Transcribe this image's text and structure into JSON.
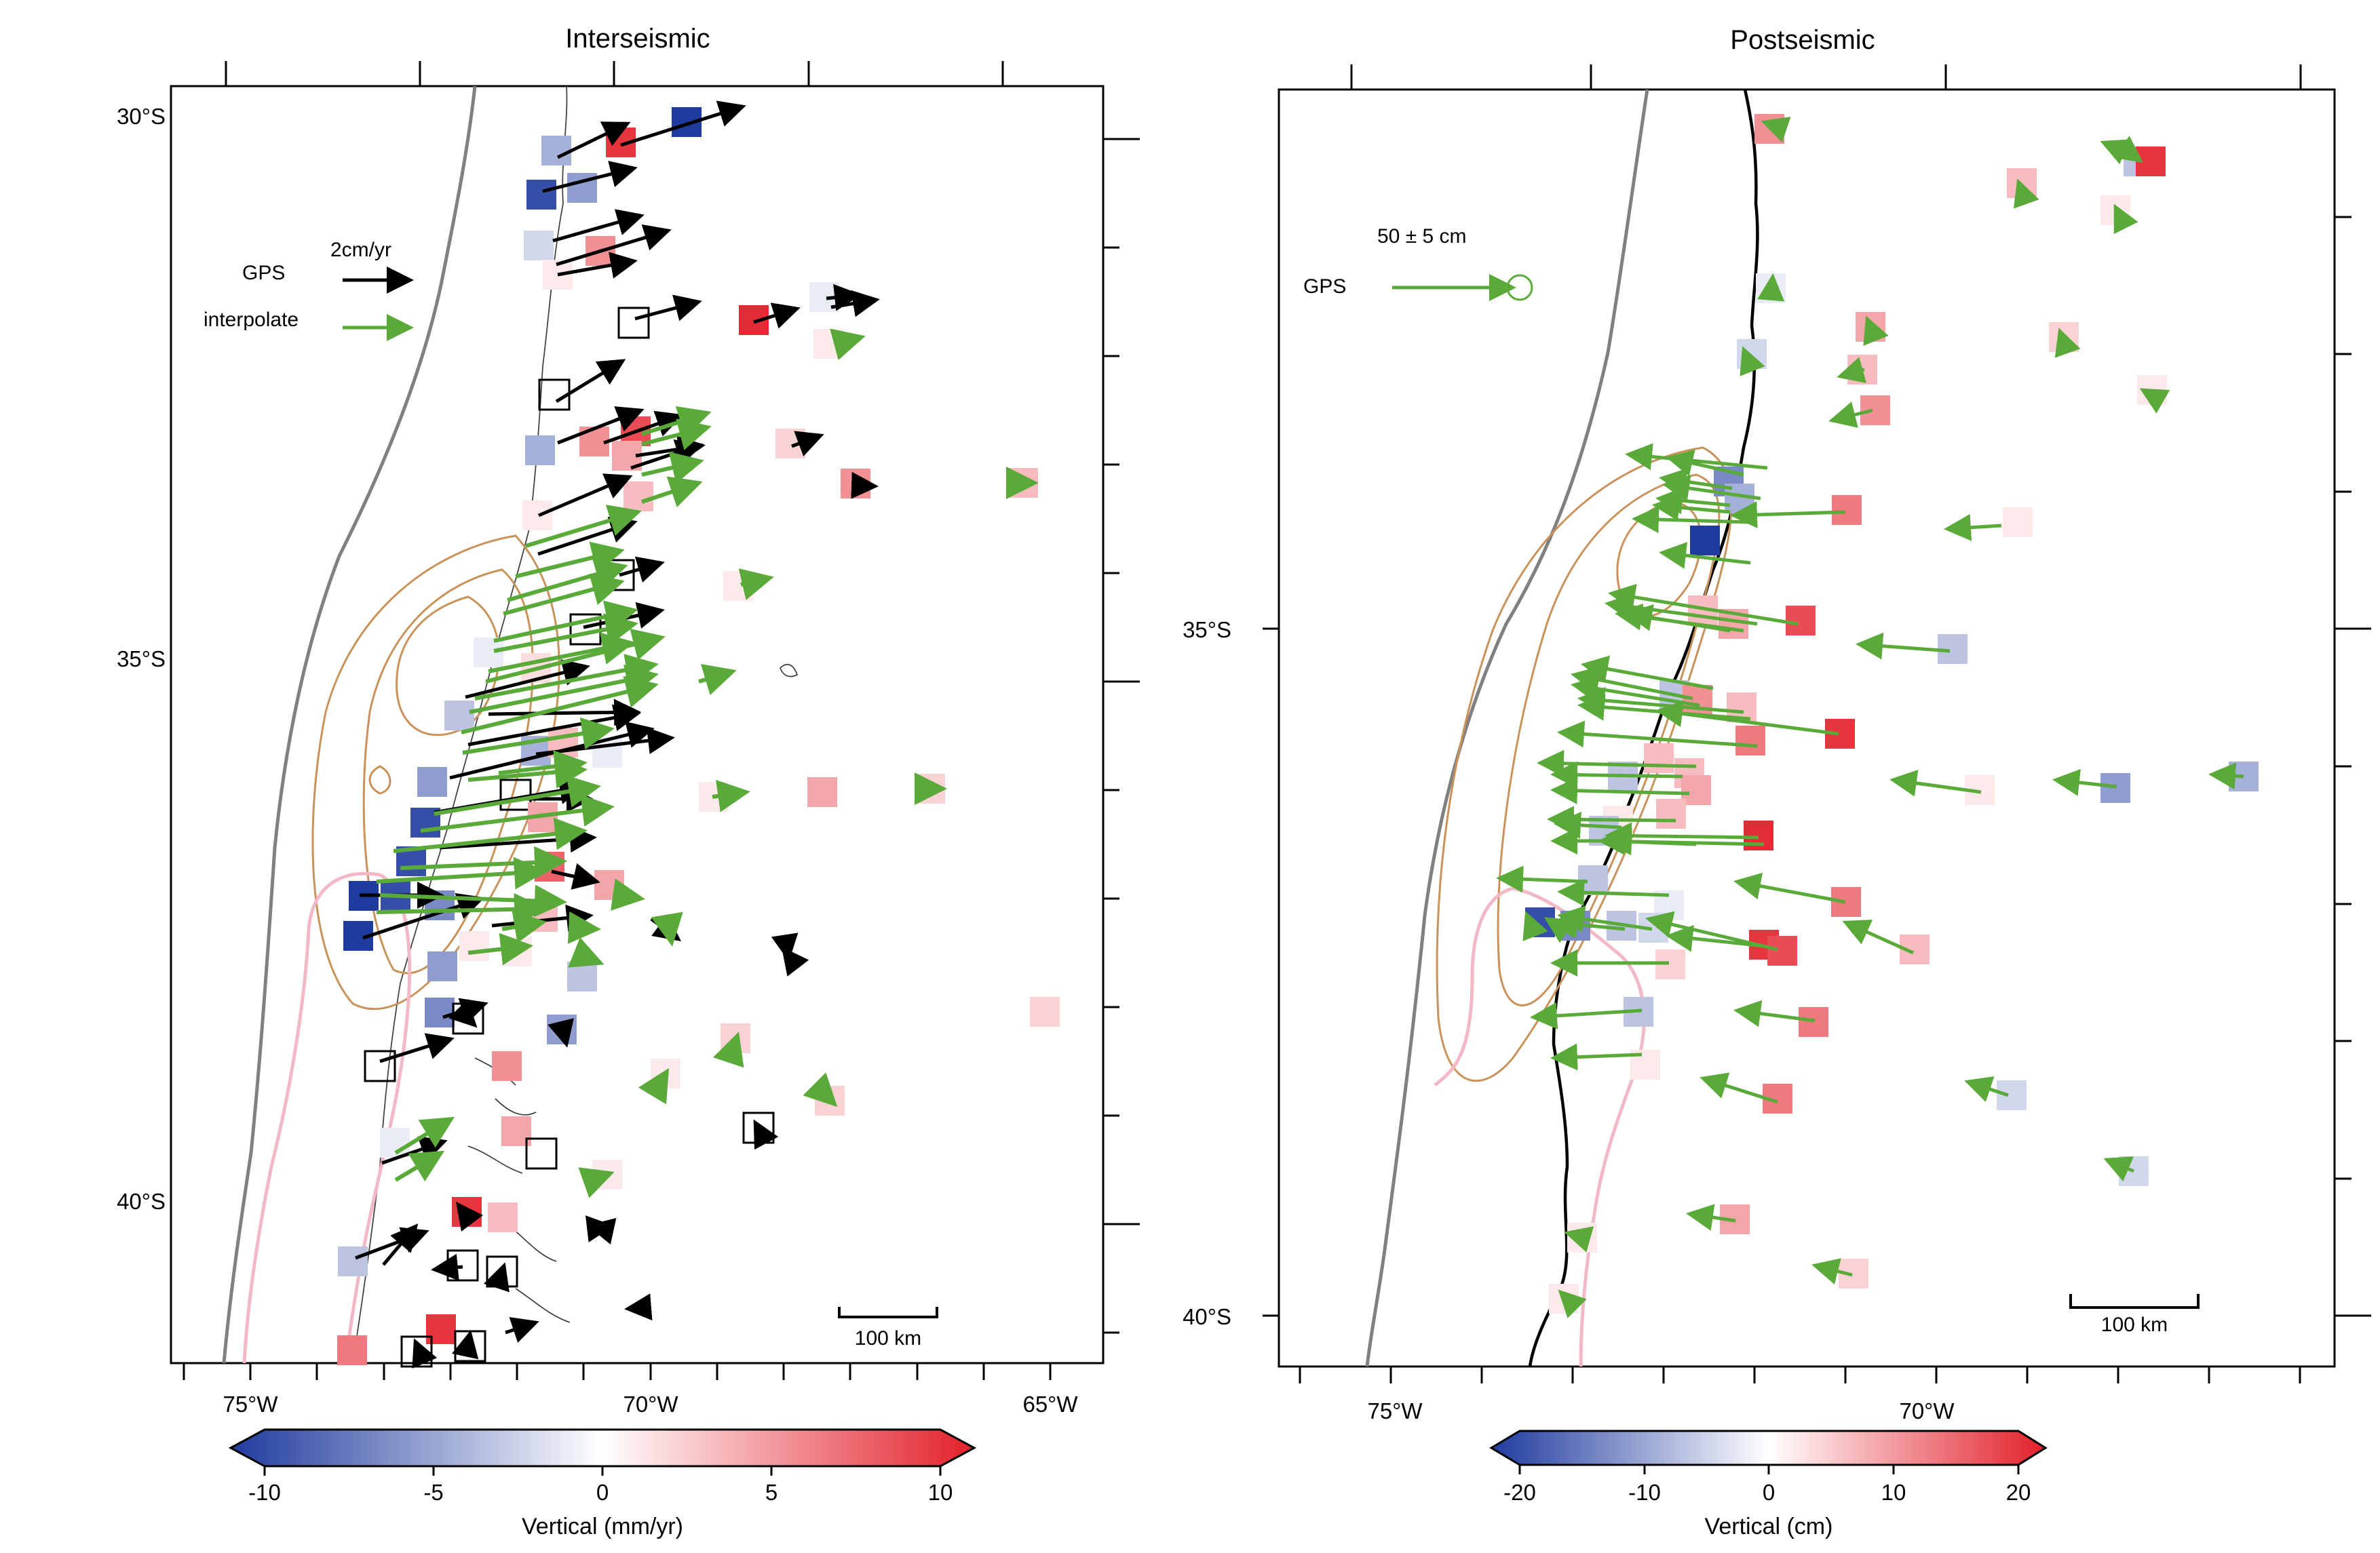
{
  "panels": [
    {
      "id": "interseismic",
      "title": "Interseismic",
      "lon_ticks": [
        "75°W",
        "70°W",
        "65°W"
      ],
      "lat_ticks": [
        "30°S",
        "35°S",
        "40°S"
      ],
      "legend": {
        "scale_label": "2cm/yr",
        "gps_label": "GPS",
        "interp_label": "interpolate"
      },
      "scale_bar": "100 km",
      "colorbar": {
        "label": "Vertical (mm/yr)",
        "ticks": [
          "-10",
          "-5",
          "0",
          "5",
          "10"
        ]
      }
    },
    {
      "id": "postseismic",
      "title": "Postseismic",
      "lon_ticks": [
        "75°W",
        "70°W"
      ],
      "lat_ticks": [
        "35°S",
        "40°S"
      ],
      "legend": {
        "scale_label": "50 ± 5 cm",
        "gps_label": "GPS"
      },
      "scale_bar": "100 km",
      "colorbar": {
        "label": "Vertical (cm)",
        "ticks": [
          "-20",
          "-10",
          "0",
          "10",
          "20"
        ]
      }
    }
  ],
  "colors": {
    "gps_arrow": "#000000",
    "interp_arrow": "#5aaa3a",
    "coastline": "#000000",
    "trench": "#808080",
    "contour": "#c8925a",
    "pink_contour": "#f2b8c6",
    "negative": "#1f3b9e",
    "positive": "#e2202a"
  }
}
